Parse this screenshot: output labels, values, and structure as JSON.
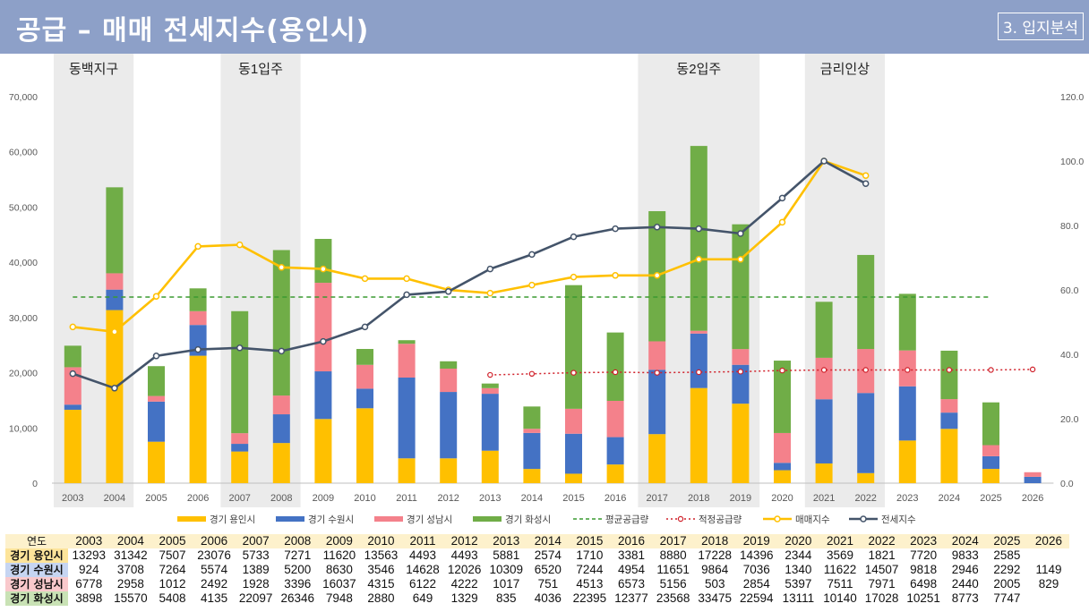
{
  "header": {
    "title": "공급 – 매매 전세지수(용인시)",
    "section": "3. 입지분석"
  },
  "chart_data": {
    "type": "bar",
    "stacked": true,
    "categories": [
      "2003",
      "2004",
      "2005",
      "2006",
      "2007",
      "2008",
      "2009",
      "2010",
      "2011",
      "2012",
      "2013",
      "2014",
      "2015",
      "2016",
      "2017",
      "2018",
      "2019",
      "2020",
      "2021",
      "2022",
      "2023",
      "2024",
      "2025",
      "2026"
    ],
    "series": [
      {
        "name": "경기 용인시",
        "color": "#ffc000",
        "values": [
          13293,
          31342,
          7507,
          23076,
          5733,
          7271,
          11620,
          13563,
          4493,
          4493,
          5881,
          2574,
          1710,
          3381,
          8880,
          17228,
          14396,
          2344,
          3569,
          1821,
          7720,
          9833,
          2585,
          0
        ]
      },
      {
        "name": "경기 수원시",
        "color": "#4472c4",
        "values": [
          924,
          3708,
          7264,
          5574,
          1389,
          5200,
          8630,
          3546,
          14628,
          12026,
          10309,
          6520,
          7244,
          4954,
          11651,
          9864,
          7036,
          1340,
          11622,
          14507,
          9818,
          2946,
          2292,
          1149
        ]
      },
      {
        "name": "경기 성남시",
        "color": "#f4818b",
        "values": [
          6778,
          2958,
          1012,
          2492,
          1928,
          3396,
          16037,
          4315,
          6122,
          4222,
          1017,
          751,
          4513,
          6573,
          5156,
          503,
          2854,
          5397,
          7511,
          7971,
          6498,
          2440,
          2005,
          829
        ]
      },
      {
        "name": "경기 화성시",
        "color": "#70ad47",
        "values": [
          3898,
          15570,
          5408,
          4135,
          22097,
          26346,
          7948,
          2880,
          649,
          1329,
          835,
          4036,
          22395,
          12377,
          23568,
          33475,
          22594,
          13111,
          10140,
          17028,
          10251,
          8773,
          7747,
          null
        ]
      }
    ],
    "lines": [
      {
        "name": "평균공급량",
        "style": "dashed",
        "color": "#3a9a30",
        "axis": "left",
        "value": 33700,
        "from": "2003",
        "to": "2025"
      },
      {
        "name": "적정공급량",
        "style": "dotted-marker",
        "color": "#d0202a",
        "axis": "left",
        "x": [
          "2013",
          "2014",
          "2015",
          "2016",
          "2017",
          "2018",
          "2019",
          "2020",
          "2021",
          "2022",
          "2023",
          "2024",
          "2025",
          "2026"
        ],
        "values": [
          19600,
          19800,
          20000,
          20100,
          20000,
          20100,
          20200,
          20400,
          20500,
          20500,
          20500,
          20500,
          20500,
          20600
        ]
      },
      {
        "name": "매매지수",
        "style": "line-marker",
        "color": "#ffc000",
        "axis": "right",
        "x": [
          "2003",
          "2004",
          "2005",
          "2006",
          "2007",
          "2008",
          "2009",
          "2010",
          "2011",
          "2012",
          "2013",
          "2014",
          "2015",
          "2016",
          "2017",
          "2018",
          "2019",
          "2020",
          "2021",
          "2022"
        ],
        "values": [
          48.5,
          47.0,
          58.0,
          73.5,
          74.0,
          67.0,
          66.5,
          63.5,
          63.5,
          60.0,
          59.0,
          61.5,
          64.0,
          64.5,
          64.5,
          69.5,
          69.5,
          81.0,
          100.0,
          95.5
        ]
      },
      {
        "name": "전세지수",
        "style": "line-marker",
        "color": "#44546a",
        "axis": "right",
        "x": [
          "2003",
          "2004",
          "2005",
          "2006",
          "2007",
          "2008",
          "2009",
          "2010",
          "2011",
          "2012",
          "2013",
          "2014",
          "2015",
          "2016",
          "2017",
          "2018",
          "2019",
          "2020",
          "2021",
          "2022"
        ],
        "values": [
          34.0,
          29.5,
          39.5,
          41.5,
          42.0,
          41.0,
          44.0,
          48.5,
          58.5,
          59.5,
          66.5,
          71.0,
          76.5,
          79.0,
          79.5,
          79.0,
          77.5,
          88.5,
          100.0,
          93.0
        ]
      }
    ],
    "highlights": [
      {
        "label": "동백지구",
        "from": "2003",
        "to": "2004"
      },
      {
        "label": "동1입주",
        "from": "2007",
        "to": "2008"
      },
      {
        "label": "동2입주",
        "from": "2017",
        "to": "2019"
      },
      {
        "label": "금리인상",
        "from": "2021",
        "to": "2022"
      }
    ],
    "y_left": {
      "min": 0,
      "max": 70000,
      "ticks": [
        "0",
        "10,000",
        "20,000",
        "30,000",
        "40,000",
        "50,000",
        "60,000",
        "70,000"
      ]
    },
    "y_right": {
      "min": 0,
      "max": 120,
      "ticks": [
        "0.0",
        "20.0",
        "40.0",
        "60.0",
        "80.0",
        "100.0",
        "120.0"
      ]
    },
    "legend": {
      "position": "bottom",
      "items": [
        "경기 용인시",
        "경기 수원시",
        "경기 성남시",
        "경기 화성시",
        "평균공급량",
        "적정공급량",
        "매매지수",
        "전세지수"
      ]
    },
    "grid": false
  },
  "table": {
    "header_label": "연도",
    "years": [
      "2003",
      "2004",
      "2005",
      "2006",
      "2007",
      "2008",
      "2009",
      "2010",
      "2011",
      "2012",
      "2013",
      "2014",
      "2015",
      "2016",
      "2017",
      "2018",
      "2019",
      "2020",
      "2021",
      "2022",
      "2023",
      "2024",
      "2025",
      "2026"
    ],
    "rows": [
      {
        "label": "경기 용인시",
        "values": [
          "13293",
          "31342",
          "7507",
          "23076",
          "5733",
          "7271",
          "11620",
          "13563",
          "4493",
          "4493",
          "5881",
          "2574",
          "1710",
          "3381",
          "8880",
          "17228",
          "14396",
          "2344",
          "3569",
          "1821",
          "7720",
          "9833",
          "2585",
          ""
        ]
      },
      {
        "label": "경기 수원시",
        "values": [
          "924",
          "3708",
          "7264",
          "5574",
          "1389",
          "5200",
          "8630",
          "3546",
          "14628",
          "12026",
          "10309",
          "6520",
          "7244",
          "4954",
          "11651",
          "9864",
          "7036",
          "1340",
          "11622",
          "14507",
          "9818",
          "2946",
          "2292",
          "1149"
        ]
      },
      {
        "label": "경기 성남시",
        "values": [
          "6778",
          "2958",
          "1012",
          "2492",
          "1928",
          "3396",
          "16037",
          "4315",
          "6122",
          "4222",
          "1017",
          "751",
          "4513",
          "6573",
          "5156",
          "503",
          "2854",
          "5397",
          "7511",
          "7971",
          "6498",
          "2440",
          "2005",
          "829"
        ]
      },
      {
        "label": "경기 화성시",
        "values": [
          "3898",
          "15570",
          "5408",
          "4135",
          "22097",
          "26346",
          "7948",
          "2880",
          "649",
          "1329",
          "835",
          "4036",
          "22395",
          "12377",
          "23568",
          "33475",
          "22594",
          "13111",
          "10140",
          "17028",
          "10251",
          "8773",
          "7747",
          ""
        ]
      }
    ]
  }
}
